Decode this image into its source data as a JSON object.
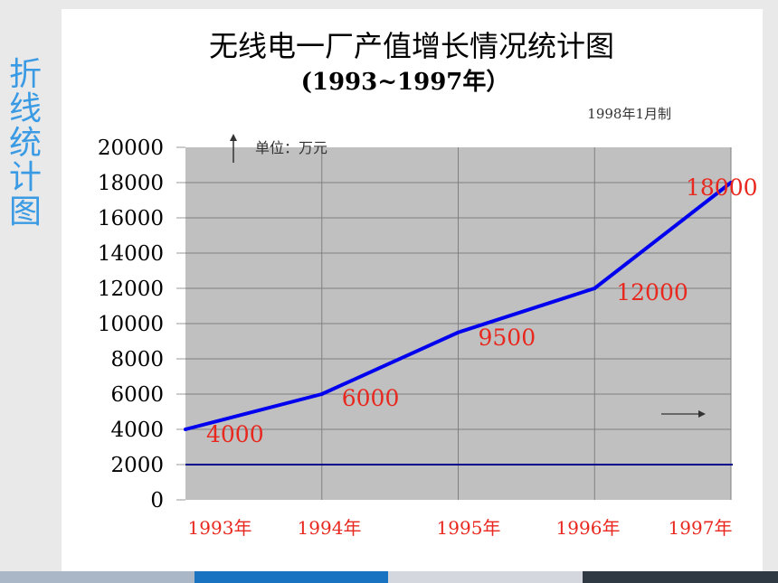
{
  "side_title": [
    "折",
    "线",
    "统",
    "计",
    "图"
  ],
  "chart_data": {
    "type": "line",
    "title": "无线电一厂产值增长情况统计图",
    "subtitle": "(1993~1997年）",
    "date_note": "1998年1月制",
    "unit_label": "单位：万元",
    "categories": [
      "1993年",
      "1994年",
      "1995年",
      "1996年",
      "1997年"
    ],
    "values": [
      4000,
      6000,
      9500,
      12000,
      18000
    ],
    "data_labels": [
      "4000",
      "6000",
      "9500",
      "12000",
      "18000"
    ],
    "yticks": [
      "0",
      "2000",
      "4000",
      "6000",
      "8000",
      "10000",
      "12000",
      "14000",
      "16000",
      "18000",
      "20000"
    ],
    "ylim": [
      0,
      20000
    ],
    "reference_line": 2000,
    "grid": true,
    "colors": {
      "line": "#0000ee",
      "labels": "#e8281f",
      "plot_bg": "#c0c0c0",
      "reference": "#00008b",
      "xlabels": "#e8281f"
    }
  },
  "bottom_bar_colors": [
    "#a9b7c6",
    "#1a73c0",
    "#d4d8de",
    "#2e3944"
  ]
}
